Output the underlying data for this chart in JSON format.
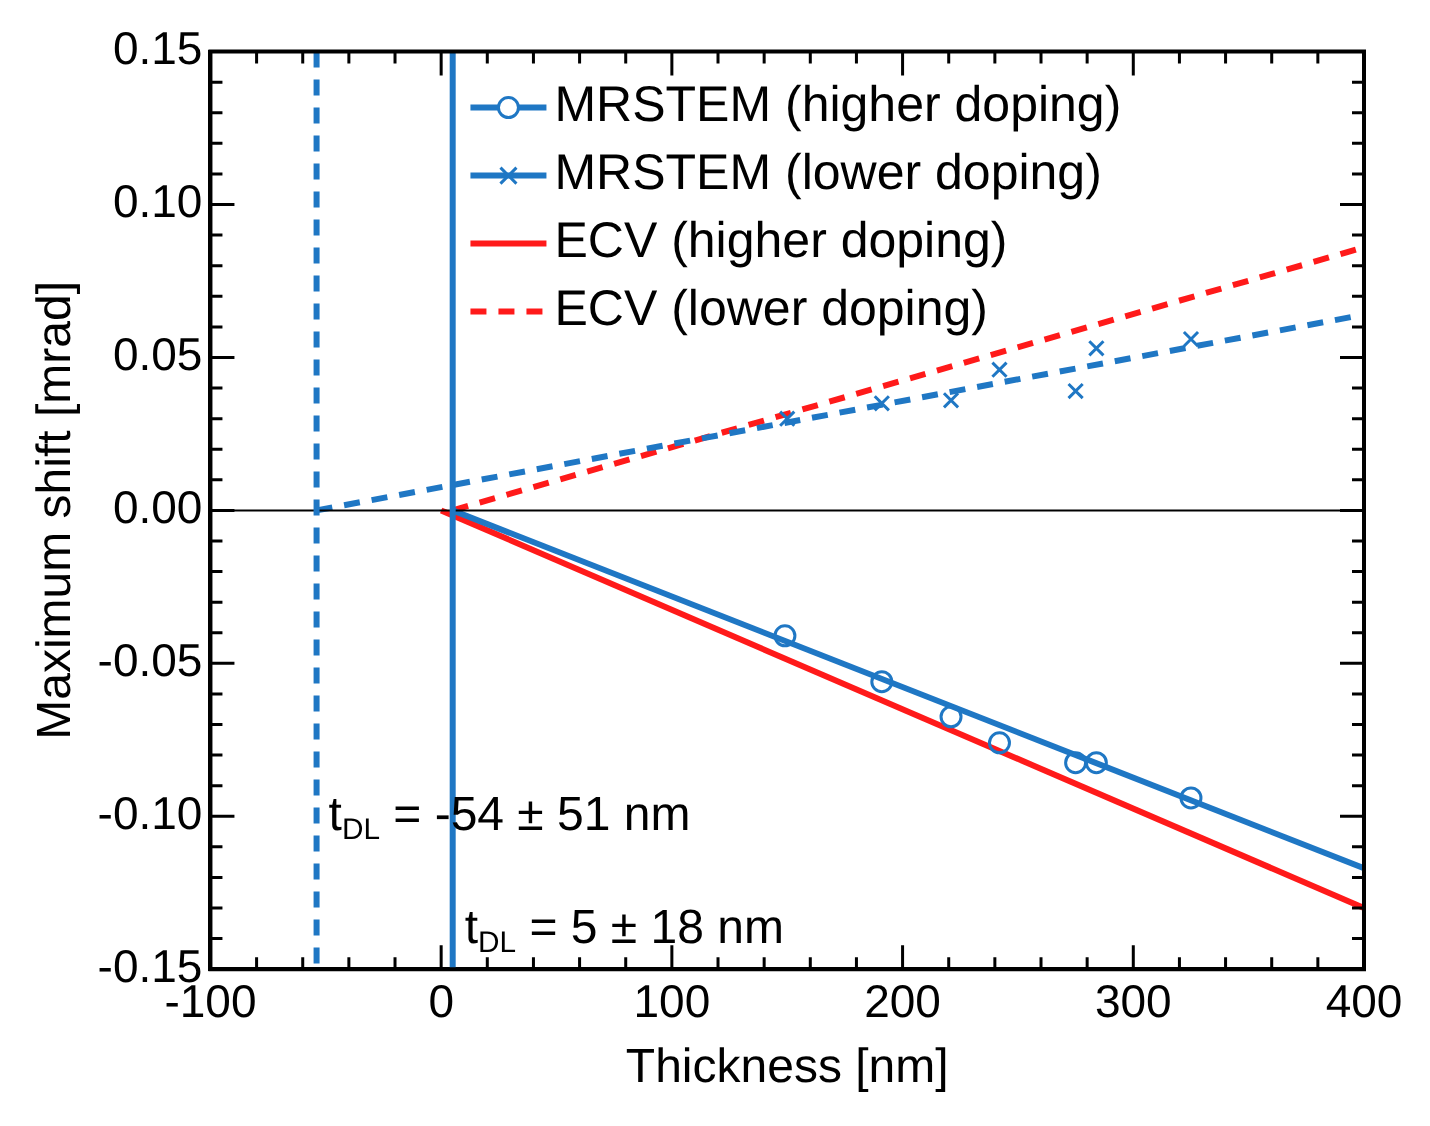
{
  "chart_data": {
    "type": "scatter",
    "xlabel": "Thickness [nm]",
    "ylabel": "Maximum shift [mrad]",
    "xlim": [
      -100,
      400
    ],
    "ylim": [
      -0.15,
      0.15
    ],
    "xticks": [
      -100,
      {
        "value": -80,
        "label": null
      },
      {
        "value": -60,
        "label": null
      },
      {
        "value": -40,
        "label": null
      },
      {
        "value": -20,
        "label": null
      },
      0,
      {
        "value": 20,
        "label": null
      },
      {
        "value": 40,
        "label": null
      },
      {
        "value": 60,
        "label": null
      },
      {
        "value": 80,
        "label": null
      },
      100,
      {
        "value": 120,
        "label": null
      },
      {
        "value": 140,
        "label": null
      },
      {
        "value": 160,
        "label": null
      },
      {
        "value": 180,
        "label": null
      },
      200,
      {
        "value": 220,
        "label": null
      },
      {
        "value": 240,
        "label": null
      },
      {
        "value": 260,
        "label": null
      },
      {
        "value": 280,
        "label": null
      },
      300,
      {
        "value": 320,
        "label": null
      },
      {
        "value": 340,
        "label": null
      },
      {
        "value": 360,
        "label": null
      },
      {
        "value": 380,
        "label": null
      },
      400
    ],
    "yticks": [
      {
        "value": -0.15,
        "label": "-0.15"
      },
      {
        "value": -0.14,
        "label": null
      },
      {
        "value": -0.13,
        "label": null
      },
      {
        "value": -0.12,
        "label": null
      },
      {
        "value": -0.11,
        "label": null
      },
      {
        "value": -0.1,
        "label": "-0.10"
      },
      {
        "value": -0.09,
        "label": null
      },
      {
        "value": -0.08,
        "label": null
      },
      {
        "value": -0.07,
        "label": null
      },
      {
        "value": -0.06,
        "label": null
      },
      {
        "value": -0.05,
        "label": "-0.05"
      },
      {
        "value": -0.04,
        "label": null
      },
      {
        "value": -0.03,
        "label": null
      },
      {
        "value": -0.02,
        "label": null
      },
      {
        "value": -0.01,
        "label": null
      },
      {
        "value": 0,
        "label": "0.00"
      },
      {
        "value": 0.01,
        "label": null
      },
      {
        "value": 0.02,
        "label": null
      },
      {
        "value": 0.03,
        "label": null
      },
      {
        "value": 0.04,
        "label": null
      },
      {
        "value": 0.05,
        "label": "0.05"
      },
      {
        "value": 0.06,
        "label": null
      },
      {
        "value": 0.07,
        "label": null
      },
      {
        "value": 0.08,
        "label": null
      },
      {
        "value": 0.09,
        "label": null
      },
      {
        "value": 0.1,
        "label": "0.10"
      },
      {
        "value": 0.11,
        "label": null
      },
      {
        "value": 0.12,
        "label": null
      },
      {
        "value": 0.13,
        "label": null
      },
      {
        "value": 0.14,
        "label": null
      },
      {
        "value": 0.15,
        "label": "0.15"
      }
    ],
    "grid": false,
    "legend": "top right",
    "series": [
      {
        "name": "MRSTEM (higher doping)",
        "type": "scatter",
        "marker": "circle",
        "color": "#1f77c4",
        "x": [
          149,
          191,
          221,
          242,
          275,
          284,
          325
        ],
        "values": [
          -0.041,
          -0.056,
          -0.0675,
          -0.076,
          -0.0825,
          -0.0825,
          -0.094
        ]
      },
      {
        "type": "line",
        "line_style": "solid",
        "color": "#1f77c4",
        "x": [
          5,
          400
        ],
        "values": [
          0,
          -0.117
        ]
      },
      {
        "name": "MRSTEM (lower doping)",
        "type": "scatter",
        "marker": "cross",
        "color": "#1f77c4",
        "x": [
          150,
          191,
          221,
          242,
          275,
          284,
          325
        ],
        "values": [
          0.03,
          0.035,
          0.036,
          0.046,
          0.039,
          0.053,
          0.056
        ]
      },
      {
        "type": "line",
        "line_style": "dashed",
        "color": "#1f77c4",
        "x": [
          -54,
          400
        ],
        "values": [
          0,
          0.064
        ]
      },
      {
        "name": "ECV (higher doping)",
        "type": "line",
        "line_style": "solid",
        "color": "#ff1a1a",
        "x": [
          0,
          400
        ],
        "values": [
          0,
          -0.13
        ]
      },
      {
        "name": "ECV (lower doping)",
        "type": "line",
        "line_style": "dashed",
        "color": "#ff1a1a",
        "x": [
          5,
          400
        ],
        "values": [
          0,
          0.086
        ]
      }
    ],
    "ref_lines": [
      {
        "axis": "y",
        "value": 0,
        "color": "#000000",
        "line_style": "solid"
      },
      {
        "axis": "x",
        "value": -54,
        "color": "#1f77c4",
        "line_style": "dashed"
      },
      {
        "axis": "x",
        "value": 5,
        "color": "#1f77c4",
        "line_style": "solid"
      }
    ],
    "annotations": [
      {
        "text": "t$_{DL}$ = -54 ± 51 nm",
        "x": -54,
        "y": -0.1
      },
      {
        "text": "t$_{DL}$ = 5 ± 18 nm",
        "x": 5,
        "y": -0.137
      }
    ]
  }
}
